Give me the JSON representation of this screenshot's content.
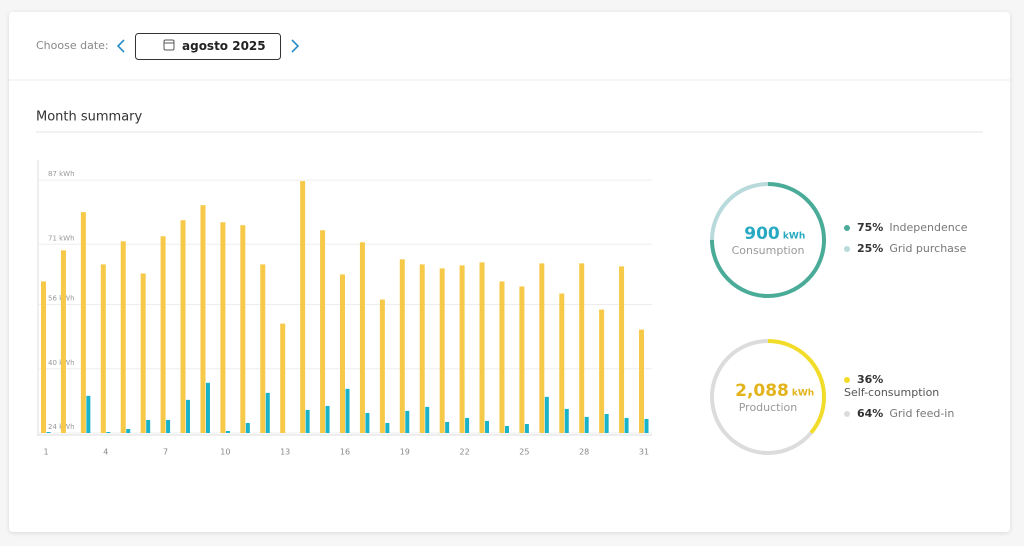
{
  "header": {
    "label": "Choose date:",
    "date": "agosto 2025"
  },
  "section_title": "Month summary",
  "chart_data": [
    {
      "type": "bar",
      "categories": [
        "1",
        null,
        null,
        "4",
        null,
        null,
        "7",
        null,
        null,
        "10",
        null,
        null,
        "13",
        null,
        null,
        "16",
        null,
        null,
        "19",
        null,
        null,
        "22",
        null,
        null,
        "25",
        null,
        null,
        "28",
        null,
        null,
        "31"
      ],
      "series": [
        {
          "color": "#f7c948",
          "values": [
            61.75,
            69.5,
            79,
            66,
            71.75,
            63.75,
            73,
            77,
            80.75,
            76.5,
            75.75,
            66,
            51.25,
            86.75,
            74.5,
            63.5,
            71.5,
            57.25,
            67.25,
            66,
            65,
            65.75,
            66.5,
            61.75,
            60.5,
            66.25,
            58.75,
            66.25,
            54.75,
            65.5,
            49.75
          ]
        },
        {
          "color": "#18b3c9",
          "values": [
            24.25,
            null,
            33.25,
            24.25,
            25,
            27.25,
            27.25,
            32.25,
            36.5,
            24.5,
            26.5,
            34,
            null,
            29.75,
            30.75,
            35,
            29,
            26.5,
            29.5,
            30.5,
            26.75,
            27.75,
            27,
            25.75,
            26.25,
            33,
            30,
            28,
            28.75,
            27.75,
            27.5
          ]
        }
      ],
      "ylim": [
        24,
        92
      ],
      "yticks": [
        {
          "value": 24,
          "label": "24 kWh"
        },
        {
          "value": 40,
          "label": "40 kWh"
        },
        {
          "value": 56,
          "label": "56 kWh"
        },
        {
          "value": 71,
          "label": "71 kWh"
        },
        {
          "value": 87,
          "label": "87 kWh"
        }
      ],
      "grid": true
    },
    {
      "type": "donut",
      "center_value": "900",
      "unit": "kWh",
      "label": "Consumption",
      "value_color": "#27a9c1",
      "categories": [
        "Independence",
        "Grid purchase"
      ],
      "values": [
        75,
        25
      ],
      "value_labels": [
        "75%",
        "25%"
      ],
      "colors": [
        "#4aab99",
        "#b9dadb"
      ]
    },
    {
      "type": "donut",
      "center_value": "2,088",
      "unit": "kWh",
      "label": "Production",
      "value_color": "#e3b31c",
      "categories": [
        "Self-consumption",
        "Grid feed-in"
      ],
      "values": [
        36,
        64
      ],
      "value_labels": [
        "36%",
        "64%"
      ],
      "colors": [
        "#f2dc2a",
        "#dcdcdc"
      ]
    }
  ]
}
